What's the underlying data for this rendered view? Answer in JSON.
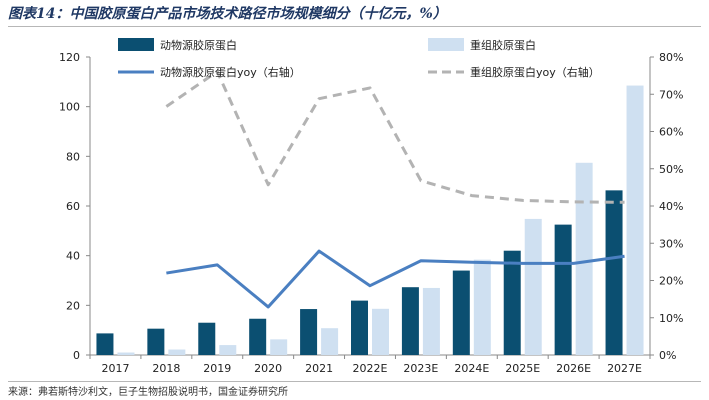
{
  "page": {
    "title": "图表14：中国胶原蛋白产品市场技术路径市场规模细分（十亿元，%）",
    "source": "来源：弗若斯特沙利文，巨子生物招股说明书，国金证券研究所"
  },
  "colors": {
    "animal": "#0b4f71",
    "recombinant": "#cfe0f1",
    "animal_yoy": "#4a7fc1",
    "recombinant_yoy": "#b3b3b3"
  },
  "chart_data": {
    "type": "bar",
    "title": "中国胶原蛋白产品市场技术路径市场规模细分（十亿元，%）",
    "categories": [
      "2017",
      "2018",
      "2019",
      "2020",
      "2021",
      "2022E",
      "2023E",
      "2024E",
      "2025E",
      "2026E",
      "2027E"
    ],
    "series": [
      {
        "name": "动物源胶原蛋白",
        "kind": "bar",
        "axis": "left",
        "values": [
          8.7,
          10.6,
          13.0,
          14.6,
          18.5,
          21.9,
          27.3,
          34.0,
          42.0,
          52.5,
          66.3
        ]
      },
      {
        "name": "重组胶原蛋白",
        "kind": "bar",
        "axis": "left",
        "values": [
          1.0,
          2.2,
          4.0,
          6.3,
          10.8,
          18.6,
          27.0,
          38.4,
          54.8,
          77.4,
          108.5
        ]
      },
      {
        "name": "动物源胶原蛋白yoy（右轴）",
        "kind": "line",
        "axis": "right",
        "values": [
          null,
          22.0,
          24.2,
          12.9,
          27.9,
          18.6,
          25.3,
          24.9,
          24.6,
          24.6,
          26.5
        ]
      },
      {
        "name": "重组胶原蛋白yoy（右轴）",
        "kind": "line",
        "axis": "right",
        "dash": true,
        "values": [
          null,
          66.7,
          76.1,
          45.7,
          68.8,
          71.7,
          46.8,
          42.8,
          41.5,
          41.1,
          41.0
        ]
      }
    ],
    "y_left": {
      "min": 0,
      "max": 120,
      "step": 20,
      "ticks": [
        "0",
        "20",
        "40",
        "60",
        "80",
        "100",
        "120"
      ]
    },
    "y_right": {
      "min": 0,
      "max": 80,
      "step": 10,
      "ticks": [
        "0%",
        "10%",
        "20%",
        "30%",
        "40%",
        "50%",
        "60%",
        "70%",
        "80%"
      ]
    },
    "legend": [
      "动物源胶原蛋白",
      "重组胶原蛋白",
      "动物源胶原蛋白yoy（右轴）",
      "重组胶原蛋白yoy（右轴）"
    ],
    "legend_position": "top",
    "grid": false
  }
}
